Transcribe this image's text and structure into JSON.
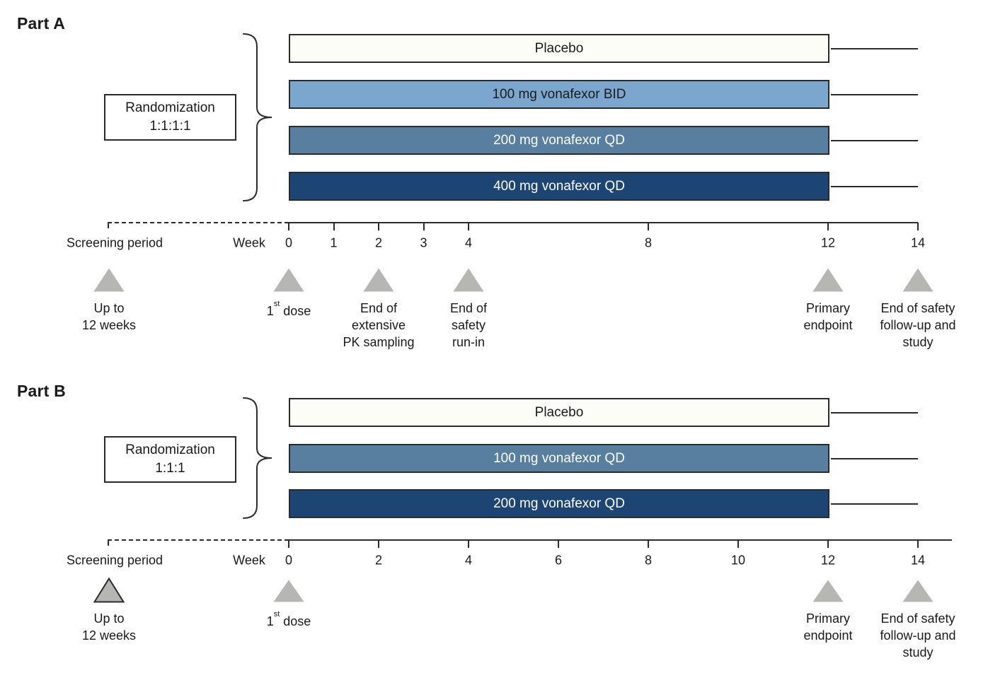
{
  "figure": {
    "type": "clinical-trial-design-diagram",
    "triangle_color": "#b6b6b2",
    "line_color": "#2b2b2b"
  },
  "parts": [
    {
      "title": "Part A",
      "randomization": {
        "line1": "Randomization",
        "line2": "1:1:1:1"
      },
      "arms": [
        {
          "label": "Placebo",
          "fill": "#fdfdf8",
          "text_color": "#1a1a1a"
        },
        {
          "label": "100 mg vonafexor BID",
          "fill": "#7ba7ce",
          "text_color": "#1a1a1a"
        },
        {
          "label": "200 mg vonafexor QD",
          "fill": "#587fa0",
          "text_color": "#ffffff"
        },
        {
          "label": "400 mg vonafexor QD",
          "fill": "#1d4573",
          "text_color": "#ffffff"
        }
      ],
      "axis": {
        "screening_label": "Screening period",
        "week_label": "Week",
        "ticks": [
          0,
          1,
          2,
          3,
          4,
          8,
          12,
          14
        ]
      },
      "markers": [
        {
          "pos": "screening",
          "lines": [
            "Up to",
            "12 weeks"
          ]
        },
        {
          "week": 0,
          "lines": [
            "1st dose"
          ],
          "ordinal": true
        },
        {
          "week": 2,
          "lines": [
            "End of",
            "extensive",
            "PK sampling"
          ]
        },
        {
          "week": 4,
          "lines": [
            "End of",
            "safety",
            "run-in"
          ]
        },
        {
          "week": 12,
          "lines": [
            "Primary",
            "endpoint"
          ]
        },
        {
          "week": 14,
          "lines": [
            "End of safety",
            "follow-up and",
            "study"
          ]
        }
      ]
    },
    {
      "title": "Part B",
      "randomization": {
        "line1": "Randomization",
        "line2": "1:1:1"
      },
      "arms": [
        {
          "label": "Placebo",
          "fill": "#fdfdf8",
          "text_color": "#1a1a1a"
        },
        {
          "label": "100 mg vonafexor QD",
          "fill": "#587fa0",
          "text_color": "#ffffff"
        },
        {
          "label": "200 mg vonafexor QD",
          "fill": "#1d4573",
          "text_color": "#ffffff"
        }
      ],
      "axis": {
        "screening_label": "Screening period",
        "week_label": "Week",
        "ticks": [
          0,
          2,
          4,
          6,
          8,
          10,
          12,
          14
        ]
      },
      "markers": [
        {
          "pos": "screening",
          "lines": [
            "Up to",
            "12 weeks"
          ],
          "outlined": true
        },
        {
          "week": 0,
          "lines": [
            "1st dose"
          ],
          "ordinal": true
        },
        {
          "week": 12,
          "lines": [
            "Primary",
            "endpoint"
          ]
        },
        {
          "week": 14,
          "lines": [
            "End of safety",
            "follow-up and",
            "study"
          ]
        }
      ]
    }
  ]
}
